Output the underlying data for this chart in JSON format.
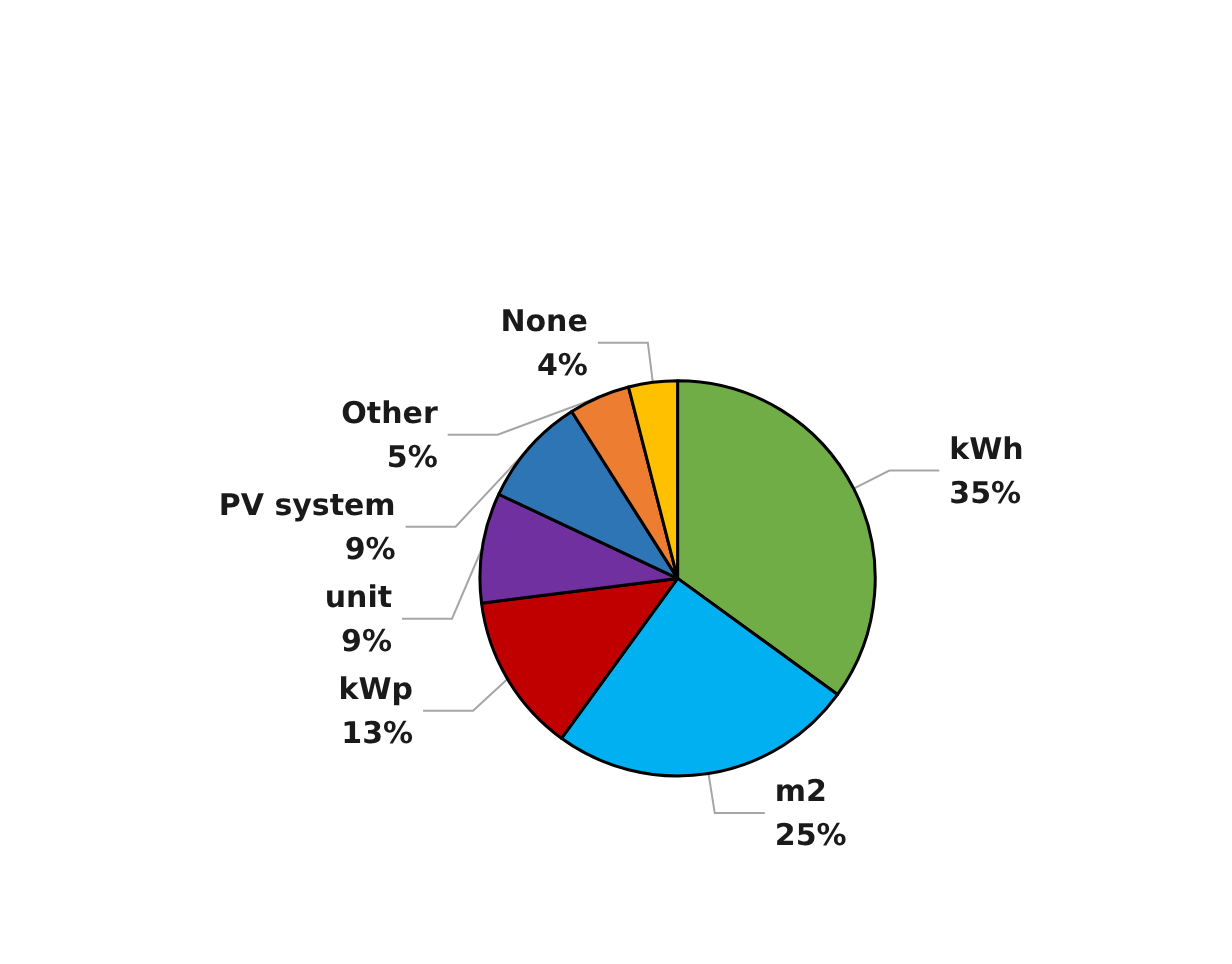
{
  "chart_data": {
    "type": "pie",
    "categories": [
      "kWh",
      "m2",
      "kWp",
      "unit",
      "PV system",
      "Other",
      "None"
    ],
    "values": [
      35,
      25,
      13,
      9,
      9,
      5,
      4
    ],
    "colors": [
      "#70ad47",
      "#00b0f0",
      "#c00000",
      "#7030a0",
      "#2e75b6",
      "#ed7d31",
      "#ffc000"
    ],
    "value_labels": [
      "35%",
      "25%",
      "13%",
      "9%",
      "9%",
      "5%",
      "4%"
    ],
    "legend": false
  }
}
